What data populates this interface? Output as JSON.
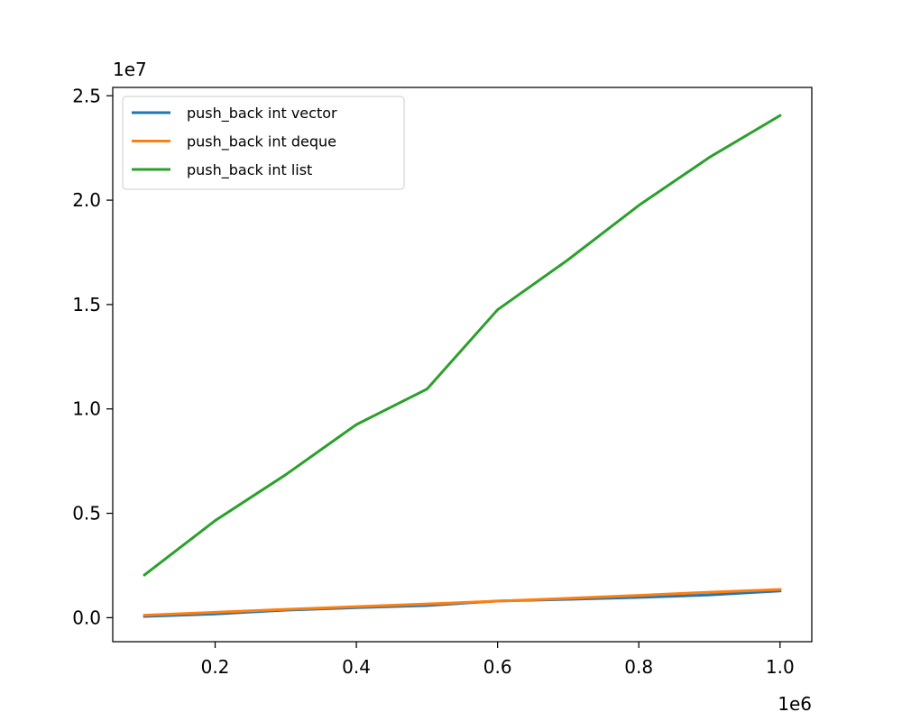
{
  "chart_data": {
    "type": "line",
    "title": "",
    "xlabel": "",
    "ylabel": "",
    "x_offset_label": "1e6",
    "y_offset_label": "1e7",
    "x": [
      100000,
      200000,
      300000,
      400000,
      500000,
      600000,
      700000,
      800000,
      900000,
      1000000
    ],
    "xlim": [
      55000,
      1045000
    ],
    "ylim": [
      -1150000,
      25400000
    ],
    "x_ticks": [
      200000,
      400000,
      600000,
      800000,
      1000000
    ],
    "x_tick_labels": [
      "0.2",
      "0.4",
      "0.6",
      "0.8",
      "1.0"
    ],
    "y_ticks": [
      0,
      5000000,
      10000000,
      15000000,
      20000000,
      25000000
    ],
    "y_tick_labels": [
      "0.0",
      "0.5",
      "1.0",
      "1.5",
      "2.0",
      "2.5"
    ],
    "grid": false,
    "legend_position": "top-left",
    "series": [
      {
        "name": "push_back int vector",
        "color": "#1f77b4",
        "values": [
          60000,
          180000,
          360000,
          480000,
          580000,
          800000,
          880000,
          970000,
          1090000,
          1280000
        ]
      },
      {
        "name": "push_back int deque",
        "color": "#ff7f0e",
        "values": [
          120000,
          260000,
          400000,
          530000,
          660000,
          790000,
          930000,
          1070000,
          1220000,
          1350000
        ]
      },
      {
        "name": "push_back int list",
        "color": "#2ca02c",
        "values": [
          2050000,
          4650000,
          6850000,
          9250000,
          10950000,
          14750000,
          17150000,
          19750000,
          22050000,
          24050000
        ]
      }
    ]
  }
}
